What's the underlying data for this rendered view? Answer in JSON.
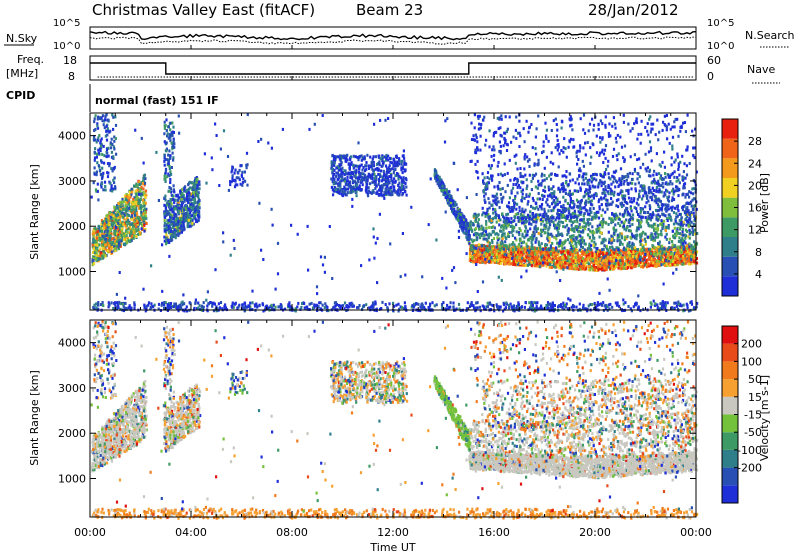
{
  "header": {
    "station": "Christmas Valley East (fitACF)",
    "beam": "Beam 23",
    "date": "28/Jan/2012"
  },
  "summary": {
    "nsky_label": "N.Sky",
    "nsearch_label": "N.Search",
    "nsky_ticks": [
      "10^5",
      "10^0"
    ],
    "nsearch_ticks": [
      "10^5",
      "10^0"
    ],
    "freq_label": "Freq.",
    "freq_unit": "[MHz]",
    "freq_ticks": [
      "18",
      "8"
    ],
    "nave_label": "Nave",
    "nave_ticks": [
      "60",
      "0"
    ],
    "cpid_label": "CPID",
    "cpid_value": "normal (fast) 151 IF"
  },
  "colors": {
    "power_scale": [
      "#1f2fd8",
      "#2850b4",
      "#2f7f8a",
      "#3e9a64",
      "#7fbe3c",
      "#f0d020",
      "#f39a1c",
      "#f0641a",
      "#e82010"
    ],
    "velocity_scale": [
      "#1f2fd8",
      "#2850b4",
      "#2f7f8a",
      "#3e9a64",
      "#74c23c",
      "#c8c8c0",
      "#f5a030",
      "#f07a1c",
      "#e84a1a",
      "#e01010"
    ]
  },
  "chart_data": [
    {
      "type": "heatmap",
      "name": "power",
      "ylabel": "Slant Range [km]",
      "yticks": [
        1000,
        2000,
        3000,
        4000
      ],
      "ylim": [
        150,
        4500
      ],
      "xticks": [
        "00:00",
        "04:00",
        "08:00",
        "12:00",
        "16:00",
        "20:00",
        "00:00"
      ],
      "xlim_hours": [
        0,
        24
      ],
      "colorbar": {
        "label": "Power [dB]",
        "ticks": [
          4,
          8,
          12,
          16,
          20,
          24,
          28
        ],
        "range": [
          0,
          32
        ]
      }
    },
    {
      "type": "heatmap",
      "name": "velocity",
      "ylabel": "Slant Range [km]",
      "yticks": [
        1000,
        2000,
        3000,
        4000
      ],
      "ylim": [
        150,
        4500
      ],
      "xticks": [
        "00:00",
        "04:00",
        "08:00",
        "12:00",
        "16:00",
        "20:00",
        "00:00"
      ],
      "xlim_hours": [
        0,
        24
      ],
      "xlabel": "Time UT",
      "colorbar": {
        "label": "Velocity [m s-1]",
        "ticks": [
          200,
          100,
          50,
          15,
          -15,
          -50,
          -100,
          -200
        ]
      }
    }
  ]
}
